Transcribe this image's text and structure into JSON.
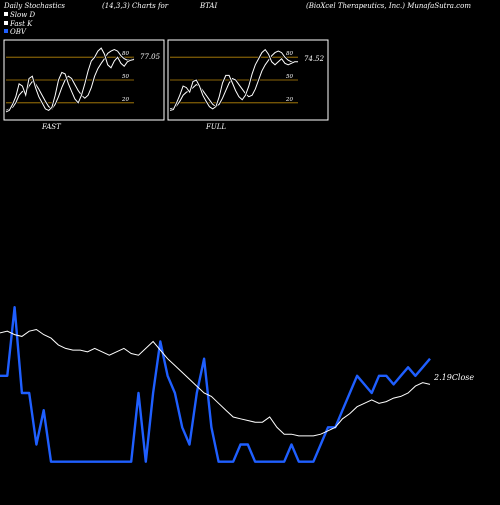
{
  "header": {
    "title": "Daily Stochastics",
    "params": "(14,3,3) Charts for",
    "ticker": "BTAI",
    "company": "(BioXcel Therapeutics, Inc.) MunafaSutra.com"
  },
  "legend": [
    {
      "label": "Slow  D",
      "color": "#ffffff"
    },
    {
      "label": "Fast K",
      "color": "#ffffff"
    },
    {
      "label": "OBV",
      "color": "#1f5fff"
    }
  ],
  "colors": {
    "background": "#000000",
    "panel_border": "#ffffff",
    "level_line": "#b8860b",
    "price_line": "#ffffff",
    "obv_line": "#1f5fff"
  },
  "chart_data": [
    {
      "type": "line",
      "panel": "FAST",
      "caption": "FAST",
      "levels": [
        80,
        50,
        20
      ],
      "ylim": [
        0,
        100
      ],
      "last_value_label": "77.05",
      "series": [
        {
          "name": "Slow  D",
          "values": [
            10,
            12,
            14,
            20,
            30,
            35,
            33,
            42,
            48,
            45,
            38,
            30,
            22,
            15,
            12,
            18,
            28,
            40,
            50,
            55,
            52,
            44,
            36,
            30,
            26,
            30,
            40,
            55,
            65,
            72,
            78,
            85,
            88,
            90,
            88,
            82,
            78,
            76,
            77,
            78
          ]
        },
        {
          "name": "Fast K",
          "values": [
            8,
            10,
            18,
            28,
            45,
            42,
            30,
            52,
            55,
            40,
            28,
            20,
            12,
            10,
            14,
            30,
            50,
            60,
            58,
            45,
            35,
            25,
            20,
            30,
            45,
            62,
            75,
            80,
            88,
            92,
            84,
            70,
            66,
            75,
            80,
            72,
            68,
            74,
            76,
            77
          ]
        }
      ]
    },
    {
      "type": "line",
      "panel": "FULL",
      "caption": "FULL",
      "levels": [
        80,
        50,
        20
      ],
      "ylim": [
        0,
        100
      ],
      "last_value_label": "74.52",
      "series": [
        {
          "name": "Slow  D",
          "values": [
            12,
            13,
            16,
            22,
            30,
            34,
            36,
            40,
            44,
            42,
            36,
            30,
            24,
            18,
            15,
            18,
            26,
            36,
            46,
            52,
            50,
            44,
            38,
            32,
            28,
            30,
            38,
            50,
            62,
            70,
            76,
            82,
            86,
            88,
            86,
            80,
            76,
            74,
            74,
            75
          ]
        },
        {
          "name": "Fast K",
          "values": [
            10,
            11,
            20,
            30,
            42,
            40,
            34,
            48,
            50,
            42,
            30,
            22,
            15,
            12,
            15,
            28,
            46,
            56,
            56,
            46,
            36,
            28,
            24,
            30,
            42,
            58,
            70,
            78,
            86,
            90,
            84,
            74,
            70,
            74,
            78,
            72,
            70,
            72,
            74,
            74
          ]
        }
      ]
    },
    {
      "type": "line",
      "panel": "price_obv",
      "close_label": "2.19Close",
      "series": [
        {
          "name": "price",
          "values": [
            95,
            96,
            94,
            93,
            96,
            97,
            94,
            92,
            88,
            86,
            85,
            85,
            84,
            86,
            84,
            82,
            84,
            86,
            83,
            82,
            86,
            90,
            85,
            80,
            76,
            72,
            68,
            64,
            60,
            58,
            54,
            50,
            46,
            45,
            44,
            43,
            43,
            46,
            40,
            36,
            36,
            35,
            35,
            35,
            36,
            38,
            40,
            45,
            48,
            52,
            54,
            56,
            54,
            55,
            57,
            58,
            60,
            64,
            66,
            65
          ]
        },
        {
          "name": "OBV",
          "values": [
            70,
            70,
            110,
            60,
            60,
            30,
            50,
            20,
            20,
            20,
            20,
            20,
            20,
            20,
            20,
            20,
            20,
            20,
            20,
            60,
            20,
            60,
            90,
            70,
            60,
            40,
            30,
            60,
            80,
            40,
            20,
            20,
            20,
            30,
            30,
            20,
            20,
            20,
            20,
            20,
            30,
            20,
            20,
            20,
            30,
            40,
            40,
            50,
            60,
            70,
            65,
            60,
            70,
            70,
            65,
            70,
            75,
            70,
            75,
            80
          ]
        }
      ]
    }
  ]
}
